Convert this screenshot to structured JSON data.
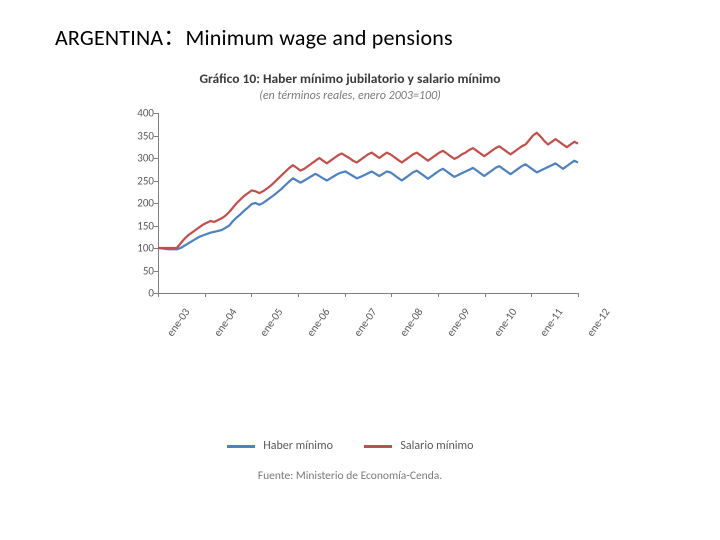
{
  "headline": "ARGENTINA：Minimum wage and pensions",
  "chart": {
    "type": "line",
    "title": "Gráfico 10: Haber mínimo jubilatorio y salario mínimo",
    "subtitle": "(en términos reales, enero 2003=100)",
    "title_fontsize": 13.5,
    "subtitle_fontsize": 12,
    "title_color": "#3a3a3a",
    "subtitle_color": "#7a7a7a",
    "background_color": "#ffffff",
    "axis_color": "#808080",
    "tick_label_color": "#595959",
    "tick_fontsize": 11,
    "line_width": 2.2,
    "ylim": [
      0,
      400
    ],
    "ytick_step": 50,
    "x_labels": [
      "ene-03",
      "ene-04",
      "ene-05",
      "ene-06",
      "ene-07",
      "ene-08",
      "ene-09",
      "ene-10",
      "ene-11",
      "ene-12"
    ],
    "x_tick_rotation_deg": -55,
    "n_points": 113,
    "series": [
      {
        "name": "Haber mínimo",
        "color": "#4f81bd",
        "values": [
          100,
          99,
          98,
          97,
          97,
          97,
          100,
          105,
          110,
          115,
          120,
          125,
          128,
          131,
          134,
          136,
          138,
          140,
          145,
          150,
          160,
          168,
          175,
          183,
          190,
          198,
          200,
          196,
          200,
          206,
          212,
          218,
          225,
          232,
          240,
          248,
          255,
          250,
          245,
          250,
          255,
          260,
          265,
          260,
          255,
          250,
          255,
          260,
          265,
          268,
          270,
          265,
          260,
          255,
          258,
          262,
          266,
          270,
          265,
          260,
          265,
          270,
          268,
          262,
          256,
          250,
          256,
          262,
          268,
          272,
          266,
          260,
          254,
          260,
          266,
          272,
          276,
          270,
          264,
          258,
          262,
          266,
          270,
          274,
          278,
          272,
          266,
          260,
          266,
          272,
          278,
          282,
          276,
          270,
          264,
          270,
          276,
          282,
          286,
          280,
          274,
          268,
          272,
          276,
          280,
          284,
          288,
          282,
          276,
          282,
          288,
          294,
          290
        ]
      },
      {
        "name": "Salario mínimo",
        "color": "#c0504d",
        "values": [
          100,
          100,
          100,
          100,
          100,
          100,
          110,
          120,
          128,
          134,
          140,
          146,
          152,
          156,
          160,
          158,
          162,
          166,
          172,
          180,
          190,
          200,
          208,
          216,
          222,
          228,
          226,
          222,
          226,
          232,
          238,
          246,
          254,
          262,
          270,
          278,
          284,
          278,
          272,
          276,
          282,
          288,
          294,
          300,
          294,
          288,
          294,
          300,
          306,
          310,
          305,
          300,
          294,
          290,
          296,
          302,
          308,
          312,
          306,
          300,
          306,
          312,
          308,
          302,
          296,
          290,
          296,
          302,
          308,
          312,
          306,
          300,
          294,
          300,
          306,
          312,
          316,
          310,
          304,
          298,
          302,
          308,
          312,
          318,
          322,
          316,
          310,
          304,
          310,
          316,
          322,
          326,
          320,
          314,
          308,
          314,
          320,
          326,
          330,
          340,
          350,
          356,
          348,
          338,
          330,
          336,
          342,
          336,
          330,
          324,
          330,
          336,
          332
        ]
      }
    ],
    "legend": {
      "items": [
        "Haber mínimo",
        "Salario mínimo"
      ],
      "fontsize": 12,
      "color": "#595959"
    },
    "source": "Fuente: Ministerio de Economía-Cenda.",
    "source_fontsize": 11.5,
    "source_color": "#7a7a7a"
  }
}
